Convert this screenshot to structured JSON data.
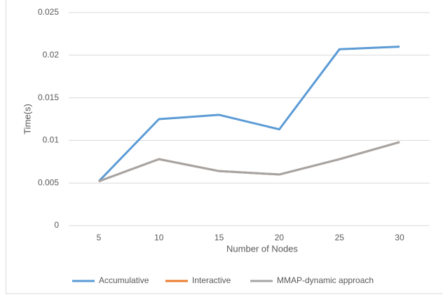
{
  "chart_data": {
    "type": "line",
    "x_label": "Number of Nodes",
    "y_label": "Time(s)",
    "categories": [
      5,
      10,
      15,
      20,
      25,
      30
    ],
    "series": [
      {
        "name": "Accumulative",
        "color": "#5b9bd5",
        "values": [
          0.0052,
          0.0125,
          0.013,
          0.0113,
          0.0207,
          0.021
        ]
      },
      {
        "name": "Interactive",
        "color": "#ed7d31",
        "values": [
          0.0052,
          0.0078,
          0.0064,
          0.006,
          0.0078,
          0.0098
        ]
      },
      {
        "name": "MMAP-dynamic approach",
        "color": "#a5a5a5",
        "values": [
          0.0052,
          0.0078,
          0.0064,
          0.006,
          0.0078,
          0.0098
        ]
      }
    ],
    "ylim": [
      0,
      0.025
    ],
    "yticks": [
      0,
      0.005,
      0.01,
      0.015,
      0.02,
      0.025
    ],
    "grid": true,
    "legend": "bottom"
  }
}
